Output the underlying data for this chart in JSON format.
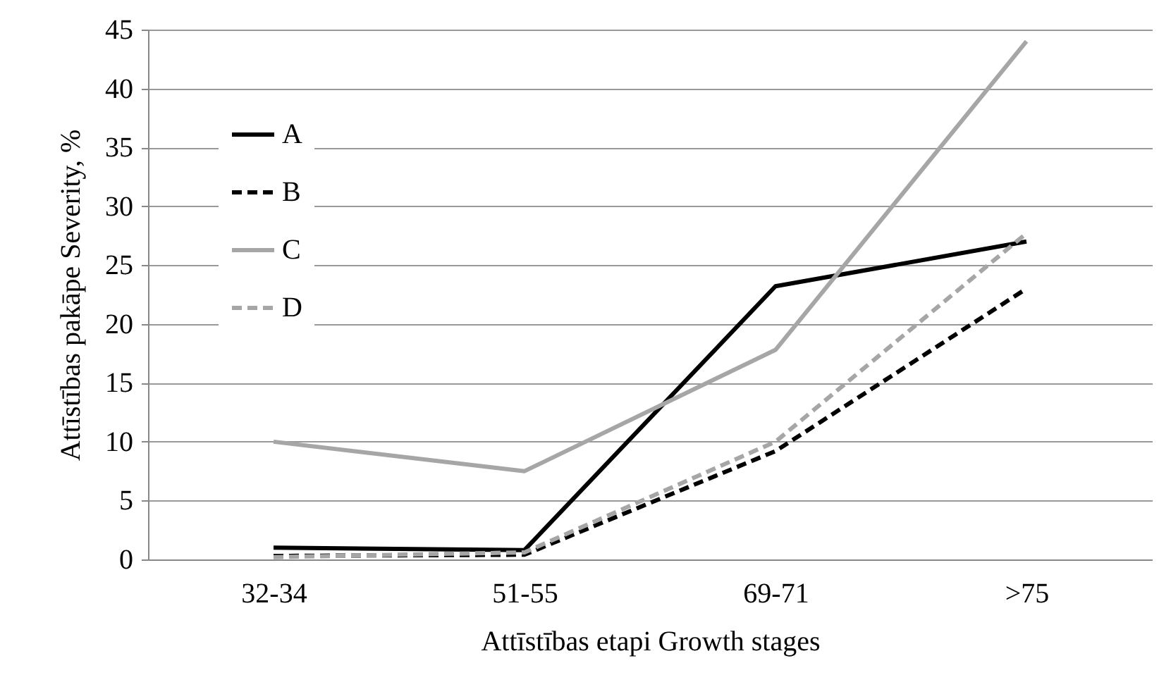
{
  "chart_data": {
    "type": "line",
    "xlabel": "Attīstības etapi Growth stages",
    "ylabel": "Attīstības pakāpe Severity, %",
    "categories": [
      "32-34",
      "51-55",
      "69-71",
      ">75"
    ],
    "series": [
      {
        "name": "A",
        "color": "#000000",
        "line_style": "solid",
        "values": [
          1,
          0.8,
          23.2,
          27
        ]
      },
      {
        "name": "B",
        "color": "#000000",
        "line_style": "dashed",
        "values": [
          0.3,
          0.4,
          9.2,
          23
        ]
      },
      {
        "name": "C",
        "color": "#a6a6a6",
        "line_style": "solid",
        "values": [
          10,
          7.5,
          17.8,
          44
        ]
      },
      {
        "name": "D",
        "color": "#a6a6a6",
        "line_style": "dashed",
        "values": [
          0.2,
          0.6,
          10,
          27.7
        ]
      }
    ],
    "ylim": [
      0,
      45
    ],
    "yticks": [
      0,
      5,
      10,
      15,
      20,
      25,
      30,
      35,
      40,
      45
    ],
    "grid": "y",
    "legend": "top left"
  }
}
